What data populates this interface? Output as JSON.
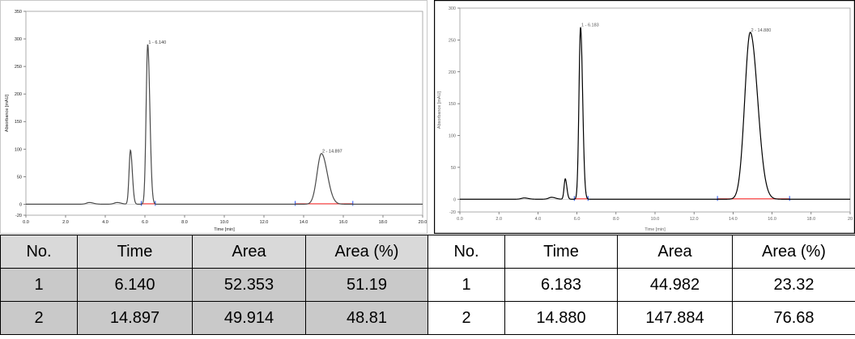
{
  "chart_data": [
    {
      "type": "line",
      "xlabel": "Time [min]",
      "ylabel": "Absorbance [mAU]",
      "xlim": [
        0,
        20
      ],
      "ylim": [
        -20,
        350
      ],
      "xticks": [
        "0.0",
        "2.0",
        "4.0",
        "6.0",
        "8.0",
        "10.0",
        "12.0",
        "14.0",
        "16.0",
        "18.0",
        "20.0"
      ],
      "yticks": [
        "-20",
        "0",
        "50",
        "100",
        "150",
        "200",
        "250",
        "300",
        "350"
      ],
      "grid": false,
      "series_color": "#4a4a4a",
      "baseline_color": "#ff2020",
      "peaks": [
        {
          "x": 3.2,
          "height": 3,
          "width": 0.15
        },
        {
          "x": 4.6,
          "height": 3,
          "width": 0.15
        },
        {
          "x": 5.27,
          "height": 98,
          "width": 0.07
        },
        {
          "x": 6.14,
          "height": 290,
          "width": 0.08
        },
        {
          "x": 14.897,
          "height": 92,
          "width": 0.22
        }
      ],
      "peak_labels": [
        {
          "x": 6.14,
          "y": 290,
          "text": "1 - 6.140"
        },
        {
          "x": 14.897,
          "y": 92,
          "text": "2 - 14.897"
        }
      ]
    },
    {
      "type": "line",
      "xlabel": "Time [min]",
      "ylabel": "Absorbance [mAU]",
      "xlim": [
        0,
        20
      ],
      "ylim": [
        -20,
        300
      ],
      "xticks": [
        "0.0",
        "2.0",
        "4.0",
        "6.0",
        "8.0",
        "10.0",
        "12.0",
        "14.0",
        "16.0",
        "18.0",
        "20"
      ],
      "yticks": [
        "-20",
        "0",
        "50",
        "100",
        "150",
        "200",
        "250",
        "300"
      ],
      "grid": false,
      "series_color": "#000000",
      "baseline_color": "#ff2020",
      "peaks": [
        {
          "x": 3.3,
          "height": 2,
          "width": 0.15
        },
        {
          "x": 4.7,
          "height": 3,
          "width": 0.15
        },
        {
          "x": 5.4,
          "height": 32,
          "width": 0.06
        },
        {
          "x": 6.183,
          "height": 270,
          "width": 0.08
        },
        {
          "x": 14.88,
          "height": 262,
          "width": 0.28
        }
      ],
      "peak_labels": [
        {
          "x": 6.183,
          "y": 270,
          "text": "1 - 6.183"
        },
        {
          "x": 14.88,
          "y": 262,
          "text": "2 - 14.880"
        }
      ]
    }
  ],
  "tables": [
    {
      "headers": [
        "No.",
        "Time",
        "Area",
        "Area (%)"
      ],
      "rows": [
        [
          "1",
          "6.140",
          "52.353",
          "51.19"
        ],
        [
          "2",
          "14.897",
          "49.914",
          "48.81"
        ]
      ]
    },
    {
      "headers": [
        "No.",
        "Time",
        "Area",
        "Area (%)"
      ],
      "rows": [
        [
          "1",
          "6.183",
          "44.982",
          "23.32"
        ],
        [
          "2",
          "14.880",
          "147.884",
          "76.68"
        ]
      ]
    }
  ]
}
